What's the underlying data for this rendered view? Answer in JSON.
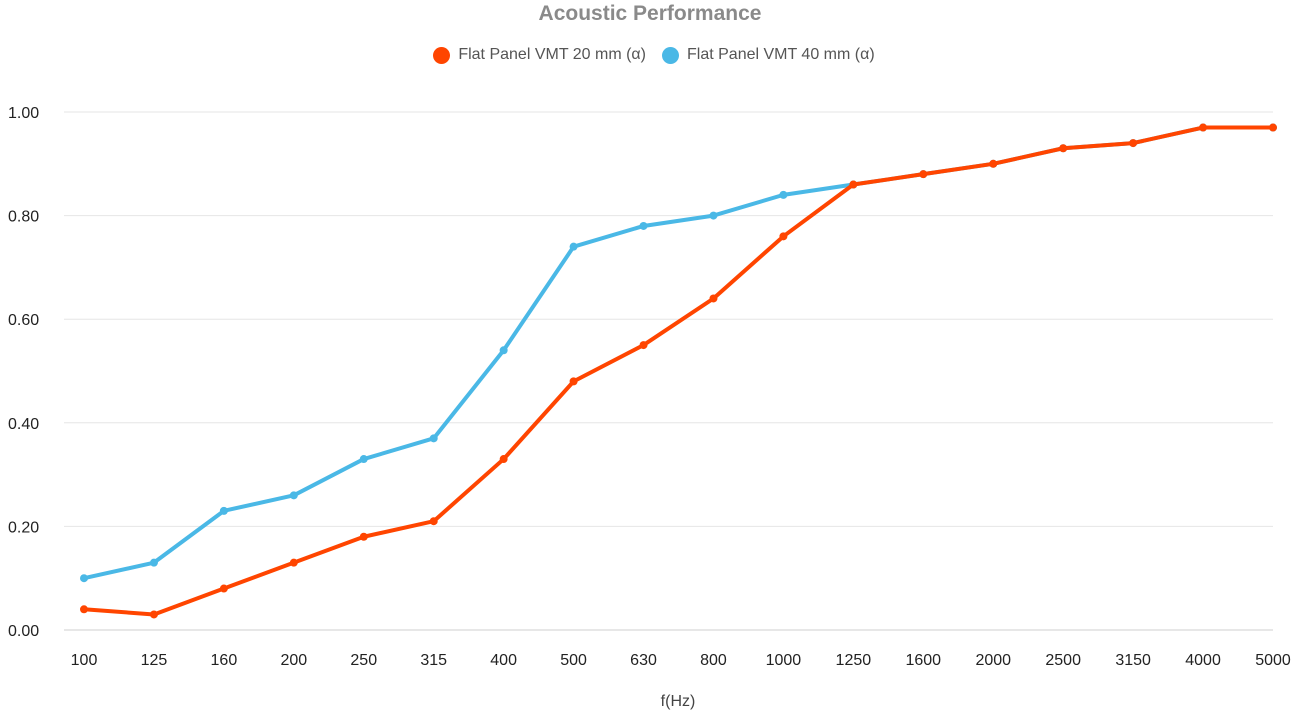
{
  "chart_data": {
    "type": "line",
    "title": "Acoustic Performance",
    "xlabel": "f(Hz)",
    "ylabel": "",
    "categories": [
      "100",
      "125",
      "160",
      "200",
      "250",
      "315",
      "400",
      "500",
      "630",
      "800",
      "1000",
      "1250",
      "1600",
      "2000",
      "2500",
      "3150",
      "4000",
      "5000"
    ],
    "ylim": [
      0,
      1
    ],
    "yticks": [
      "0.00",
      "0.20",
      "0.40",
      "0.60",
      "0.80",
      "1.00"
    ],
    "grid": true,
    "legend_position": "top-center",
    "series": [
      {
        "name": "Flat Panel VMT 20 mm (α)",
        "color": "#ff4500",
        "values": [
          0.04,
          0.03,
          0.08,
          0.13,
          0.18,
          0.21,
          0.33,
          0.48,
          0.55,
          0.64,
          0.76,
          0.86,
          0.88,
          0.9,
          0.93,
          0.94,
          0.97,
          0.97
        ]
      },
      {
        "name": "Flat Panel VMT 40 mm (α)",
        "color": "#4ab8e6",
        "values": [
          0.1,
          0.13,
          0.23,
          0.26,
          0.33,
          0.37,
          0.54,
          0.74,
          0.78,
          0.8,
          0.84,
          0.86,
          0.88,
          0.9,
          0.93,
          0.94,
          0.97,
          0.97
        ]
      }
    ]
  }
}
